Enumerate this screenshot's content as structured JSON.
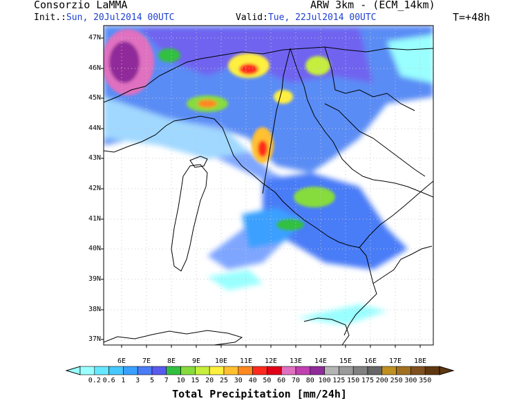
{
  "header": {
    "source": "Consorzio LaMMA",
    "model": "ARW 3km - (ECM_14km)",
    "init_label": "Init.:",
    "init_value": "Sun, 20Jul2014 00UTC",
    "valid_label": "Valid:",
    "valid_value": "Tue, 22Jul2014 00UTC",
    "lead": "T=+48h"
  },
  "map": {
    "lat_labels": [
      "47N",
      "46N",
      "45N",
      "44N",
      "43N",
      "42N",
      "41N",
      "40N",
      "39N",
      "38N",
      "37N"
    ],
    "lon_labels": [
      "6E",
      "7E",
      "8E",
      "9E",
      "10E",
      "11E",
      "12E",
      "13E",
      "14E",
      "15E",
      "16E",
      "17E",
      "18E"
    ]
  },
  "colorbar": {
    "title": "Total Precipitation [mm/24h]",
    "labels": [
      "0.2",
      "0.6",
      "1",
      "3",
      "5",
      "7",
      "10",
      "15",
      "20",
      "25",
      "30",
      "40",
      "50",
      "60",
      "70",
      "80",
      "100",
      "125",
      "150",
      "175",
      "200",
      "250",
      "300",
      "350"
    ],
    "colors": [
      "#99ffff",
      "#66e8ff",
      "#45c8ff",
      "#3aa0ff",
      "#4a7cf7",
      "#5a5af0",
      "#33c040",
      "#86dc3c",
      "#c6ee3c",
      "#fff040",
      "#ffc030",
      "#ff8820",
      "#ff2a1e",
      "#e00018",
      "#e070c0",
      "#c040b0",
      "#902c9a",
      "#b4b4b4",
      "#9a9a9a",
      "#808080",
      "#666666",
      "#c09020",
      "#a07020",
      "#805020",
      "#603810"
    ]
  }
}
